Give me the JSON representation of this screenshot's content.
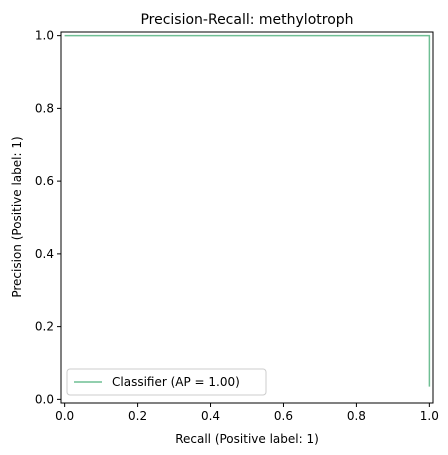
{
  "chart_data": {
    "type": "line",
    "title": "Precision-Recall: methylotroph",
    "xlabel": "Recall (Positive label: 1)",
    "ylabel": "Precision (Positive label: 1)",
    "xlim": [
      -0.01,
      1.01
    ],
    "ylim": [
      -0.01,
      1.01
    ],
    "x_ticks": [
      "0.0",
      "0.2",
      "0.4",
      "0.6",
      "0.8",
      "1.0"
    ],
    "y_ticks": [
      "0.0",
      "0.2",
      "0.4",
      "0.6",
      "0.8",
      "1.0"
    ],
    "legend_placement": "lower-left",
    "grid": false,
    "series": [
      {
        "name": "Classifier (AP = 1.00)",
        "color": "#6fbf94",
        "step": "post",
        "points": [
          [
            0.0,
            1.0
          ],
          [
            1.0,
            1.0
          ],
          [
            1.0,
            0.035
          ]
        ]
      }
    ]
  }
}
